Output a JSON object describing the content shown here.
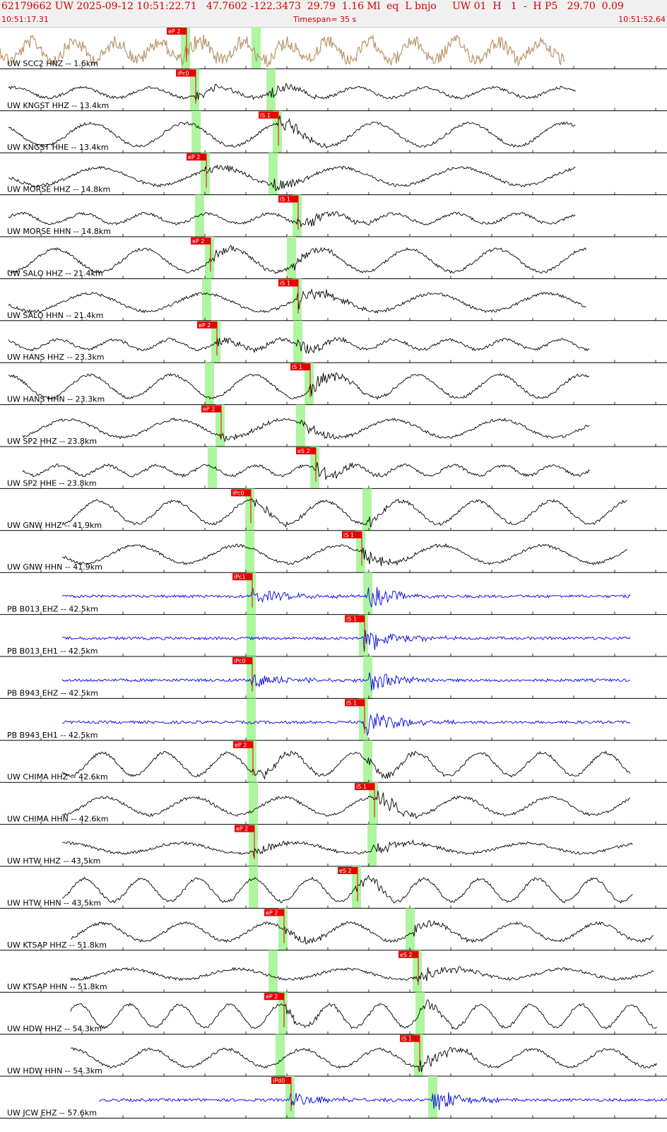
{
  "header": {
    "line1": "62179662 UW 2025-09-12 10:51:22.71   47.7602 -122.3473  29.79  1.16 Ml  eq  L bnjo     UW 01  H   1  -  H P5   29.70  0.09",
    "start_time": "10:51:17.31",
    "timespan": "Timespan=  35 s",
    "end_time": "10:51:52.64"
  },
  "colors": {
    "header_text": "#d40000",
    "pick_box": "#e80000",
    "pick_line": "#e80000",
    "highlight": "#aef5a0",
    "trace_default": "#000000",
    "trace_blue": "#0000e0",
    "trace_brown": "#b8956a"
  },
  "traces": [
    {
      "label": "UW SCC2 HNZ -- 1.6km",
      "color": "trace_brown",
      "amp": "large"
    },
    {
      "label": "UW KNGST HHZ -- 13.4km",
      "color": "trace_default"
    },
    {
      "label": "UW KNGST HHE -- 13.4km",
      "color": "trace_default"
    },
    {
      "label": "UW MORSE HHZ -- 14.8km",
      "color": "trace_default"
    },
    {
      "label": "UW MORSE HHN -- 14.8km",
      "color": "trace_default"
    },
    {
      "label": "UW SALO HHZ -- 21.4km",
      "color": "trace_default"
    },
    {
      "label": "UW SALO HHN -- 21.4km",
      "color": "trace_default"
    },
    {
      "label": "UW HANS HHZ -- 23.3km",
      "color": "trace_default"
    },
    {
      "label": "UW HANS HHN -- 23.3km",
      "color": "trace_default"
    },
    {
      "label": "UW SP2 HHZ -- 23.8km",
      "color": "trace_default"
    },
    {
      "label": "UW SP2 HHE -- 23.8km",
      "color": "trace_default"
    },
    {
      "label": "UW GNW HHZ -- 41.9km",
      "color": "trace_default"
    },
    {
      "label": "UW GNW HHN -- 41.9km",
      "color": "trace_default"
    },
    {
      "label": "PB B013 EHZ -- 42.5km",
      "color": "trace_blue"
    },
    {
      "label": "PB B013 EH1 -- 42.5km",
      "color": "trace_blue"
    },
    {
      "label": "PB B943 EHZ -- 42.5km",
      "color": "trace_blue"
    },
    {
      "label": "PB B943 EH1 -- 42.5km",
      "color": "trace_blue"
    },
    {
      "label": "UW CHIMA HHZ -- 42.6km",
      "color": "trace_default"
    },
    {
      "label": "UW CHIMA HHN -- 42.6km",
      "color": "trace_default"
    },
    {
      "label": "UW HTW HHZ -- 43.5km",
      "color": "trace_default"
    },
    {
      "label": "UW HTW HHN -- 43.5km",
      "color": "trace_default"
    },
    {
      "label": "UW KTSAP HHZ -- 51.8km",
      "color": "trace_default"
    },
    {
      "label": "UW KTSAP HHN -- 51.8km",
      "color": "trace_default"
    },
    {
      "label": "UW HDW HHZ -- 54.3km",
      "color": "trace_default"
    },
    {
      "label": "UW HDW HHN -- 54.3km",
      "color": "trace_default"
    },
    {
      "label": "UW JCW EHZ -- 57.6km",
      "color": "trace_blue"
    }
  ],
  "picks": [
    {
      "trace": 0,
      "label": "eP 2"
    },
    {
      "trace": 1,
      "label": "iPc0"
    },
    {
      "trace": 2,
      "label": "iS 1"
    },
    {
      "trace": 3,
      "label": "eP 2"
    },
    {
      "trace": 4,
      "label": "iS 1"
    },
    {
      "trace": 5,
      "label": "eP 2"
    },
    {
      "trace": 6,
      "label": "iS 1"
    },
    {
      "trace": 7,
      "label": "eP 2"
    },
    {
      "trace": 8,
      "label": "iS 1"
    },
    {
      "trace": 9,
      "label": "eP 2"
    },
    {
      "trace": 10,
      "label": "eS 2"
    },
    {
      "trace": 11,
      "label": "iPc0"
    },
    {
      "trace": 12,
      "label": "iS 1"
    },
    {
      "trace": 13,
      "label": "iPc1"
    },
    {
      "trace": 14,
      "label": "iS 1"
    },
    {
      "trace": 15,
      "label": "iPc0"
    },
    {
      "trace": 16,
      "label": "iS 1"
    },
    {
      "trace": 17,
      "label": "eP 2"
    },
    {
      "trace": 18,
      "label": "iS 1"
    },
    {
      "trace": 19,
      "label": "eP 2"
    },
    {
      "trace": 20,
      "label": "eS 2"
    },
    {
      "trace": 21,
      "label": "eP 2"
    },
    {
      "trace": 22,
      "label": "eS 2"
    },
    {
      "trace": 23,
      "label": "eP 2"
    },
    {
      "trace": 24,
      "label": "iS 1"
    },
    {
      "trace": 25,
      "label": "iPd0"
    }
  ]
}
